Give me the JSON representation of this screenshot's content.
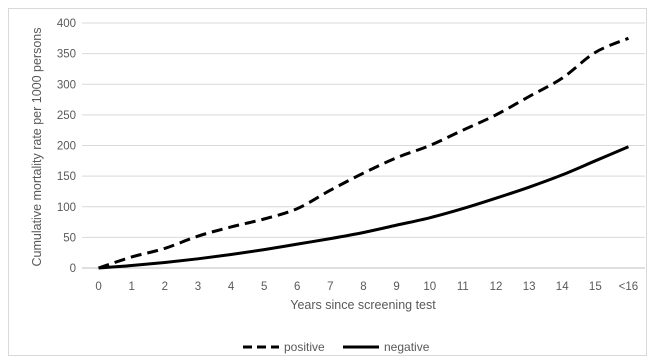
{
  "chart_data": {
    "type": "line",
    "title": "",
    "xlabel": "Years since screening test",
    "ylabel": "Cumulative mortality rate per 1000 persons",
    "categories": [
      "0",
      "1",
      "2",
      "3",
      "4",
      "5",
      "6",
      "7",
      "8",
      "9",
      "10",
      "11",
      "12",
      "13",
      "14",
      "15",
      "<16"
    ],
    "ylim": [
      0,
      400
    ],
    "yticks": [
      0,
      50,
      100,
      150,
      200,
      250,
      300,
      350,
      400
    ],
    "grid": true,
    "legend_position": "bottom",
    "series": [
      {
        "name": "positive",
        "style": "dashed",
        "color": "#000000",
        "values": [
          0,
          18,
          32,
          52,
          67,
          80,
          97,
          127,
          155,
          180,
          200,
          225,
          250,
          280,
          310,
          352,
          375
        ]
      },
      {
        "name": "negative",
        "style": "solid",
        "color": "#000000",
        "values": [
          0,
          4,
          9,
          15,
          22,
          30,
          39,
          48,
          58,
          70,
          82,
          97,
          114,
          132,
          152,
          175,
          198
        ]
      }
    ]
  }
}
